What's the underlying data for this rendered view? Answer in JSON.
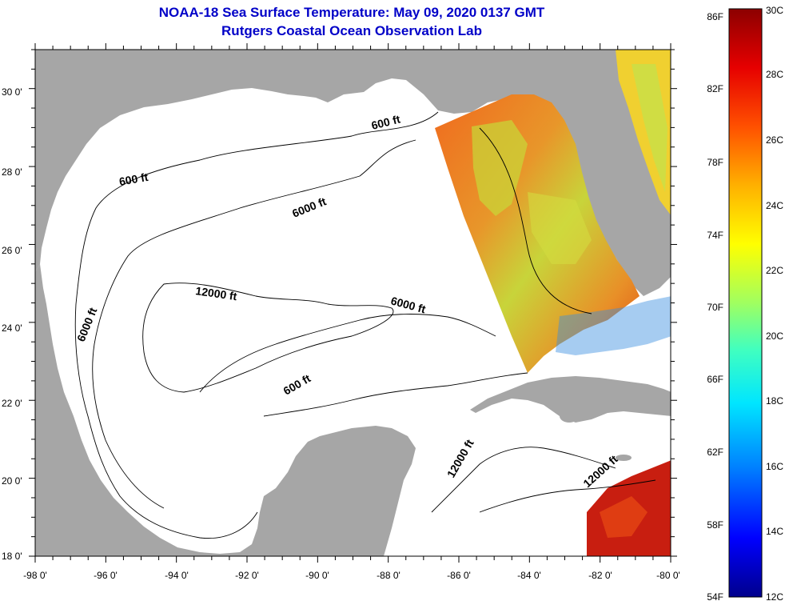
{
  "title": "NOAA-18 Sea Surface Temperature:  May 09, 2020 0137 GMT",
  "subtitle": "Rutgers Coastal Ocean Observation Lab",
  "map": {
    "lon_range": [
      -98,
      -80
    ],
    "lat_range": [
      18,
      31
    ],
    "lon_ticks": [
      "-98 0'",
      "-96 0'",
      "-94 0'",
      "-92 0'",
      "-90 0'",
      "-88 0'",
      "-86 0'",
      "-84 0'",
      "-82 0'",
      "-80 0'"
    ],
    "lat_ticks": [
      "18 0'",
      "20 0'",
      "22 0'",
      "24 0'",
      "26 0'",
      "28 0'",
      "30 0'"
    ],
    "contour_labels": [
      "600 ft",
      "600 ft",
      "6000 ft",
      "12000 ft",
      "6000 ft",
      "6000 ft",
      "600 ft",
      "12000 ft",
      "12000 ft"
    ],
    "colors": {
      "land": "#a6a6a6",
      "ocean": "#ffffff",
      "frame": "#000000"
    }
  },
  "colorbar": {
    "min_c": 12,
    "max_c": 30,
    "fahrenheit_labels": [
      "86F",
      "82F",
      "78F",
      "74F",
      "70F",
      "66F",
      "62F",
      "58F",
      "54F"
    ],
    "celsius_labels": [
      "30C",
      "28C",
      "26C",
      "24C",
      "22C",
      "20C",
      "18C",
      "16C",
      "14C",
      "12C"
    ],
    "colormap": [
      "#00008c",
      "#0000ff",
      "#0080ff",
      "#00e6ff",
      "#40ffc0",
      "#a0ff60",
      "#ffff00",
      "#ffb000",
      "#ff5000",
      "#e60000",
      "#8c0000"
    ]
  }
}
